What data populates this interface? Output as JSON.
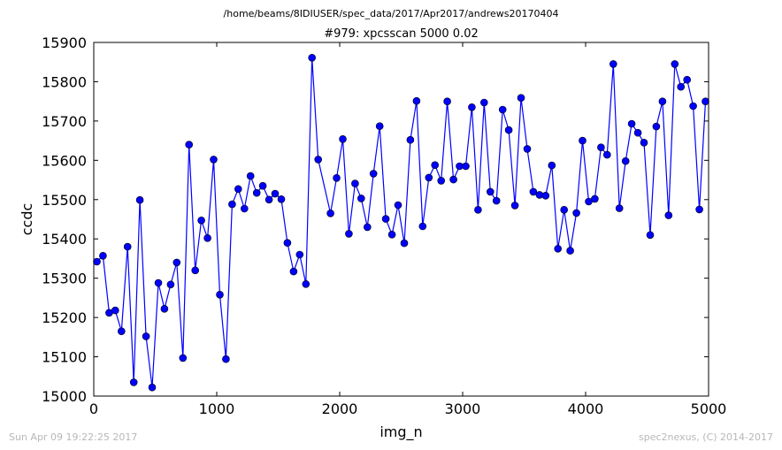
{
  "header": {
    "path": "/home/beams/8IDIUSER/spec_data/2017/Apr2017/andrews20170404"
  },
  "footer": {
    "timestamp": "Sun Apr 09 19:22:25 2017",
    "credit": "spec2nexus, (C) 2014-2017"
  },
  "chart_data": {
    "type": "line",
    "title": "#979: xpcsscan 5000 0.02",
    "xlabel": "img_n",
    "ylabel": "ccdc",
    "xlim": [
      0,
      5000
    ],
    "ylim": [
      15000,
      15900
    ],
    "xticks": [
      0,
      1000,
      2000,
      3000,
      4000,
      5000
    ],
    "yticks": [
      15000,
      15100,
      15200,
      15300,
      15400,
      15500,
      15600,
      15700,
      15800,
      15900
    ],
    "grid": false,
    "color": "#0000ff",
    "marker": "circle",
    "series": [
      {
        "x": [
          25,
          75,
          125,
          175,
          225,
          275,
          325,
          375,
          425,
          475,
          525,
          575,
          625,
          675,
          725,
          775,
          825,
          875,
          925,
          975,
          1025,
          1075,
          1125,
          1175,
          1225,
          1275,
          1325,
          1375,
          1425,
          1475,
          1525,
          1575,
          1625,
          1675,
          1725,
          1775,
          1825,
          1925,
          1975,
          2025,
          2075,
          2125,
          2175,
          2225,
          2275,
          2325,
          2375,
          2425,
          2475,
          2525,
          2575,
          2625,
          2675,
          2725,
          2775,
          2825,
          2875,
          2925,
          2975,
          3025,
          3075,
          3125,
          3175,
          3225,
          3275,
          3325,
          3375,
          3425,
          3475,
          3525,
          3575,
          3625,
          3675,
          3725,
          3775,
          3825,
          3875,
          3925,
          3975,
          4025,
          4075,
          4125,
          4175,
          4225,
          4275,
          4325,
          4375,
          4425,
          4475,
          4525,
          4575,
          4625,
          4675,
          4725,
          4775,
          4825,
          4875,
          4925,
          4975
        ],
        "y": [
          15342,
          15357,
          15212,
          15218,
          15165,
          15380,
          15035,
          15499,
          15152,
          15022,
          15288,
          15222,
          15284,
          15340,
          15097,
          15640,
          15320,
          15447,
          15402,
          15602,
          15258,
          15094,
          15488,
          15527,
          15477,
          15560,
          15517,
          15535,
          15500,
          15515,
          15501,
          15390,
          15317,
          15360,
          15285,
          15861,
          15602,
          15465,
          15555,
          15654,
          15413,
          15541,
          15503,
          15430,
          15566,
          15687,
          15451,
          15411,
          15486,
          15389,
          15652,
          15751,
          15432,
          15556,
          15588,
          15548,
          15750,
          15551,
          15585,
          15585,
          15735,
          15474,
          15747,
          15520,
          15497,
          15729,
          15677,
          15485,
          15759,
          15629,
          15520,
          15512,
          15510,
          15587,
          15375,
          15474,
          15370,
          15466,
          15650,
          15495,
          15502,
          15633,
          15614,
          15845,
          15478,
          15598,
          15693,
          15670,
          15645,
          15410,
          15686,
          15750,
          15460,
          15845,
          15787,
          15805,
          15738,
          15475,
          15750
        ]
      }
    ]
  }
}
